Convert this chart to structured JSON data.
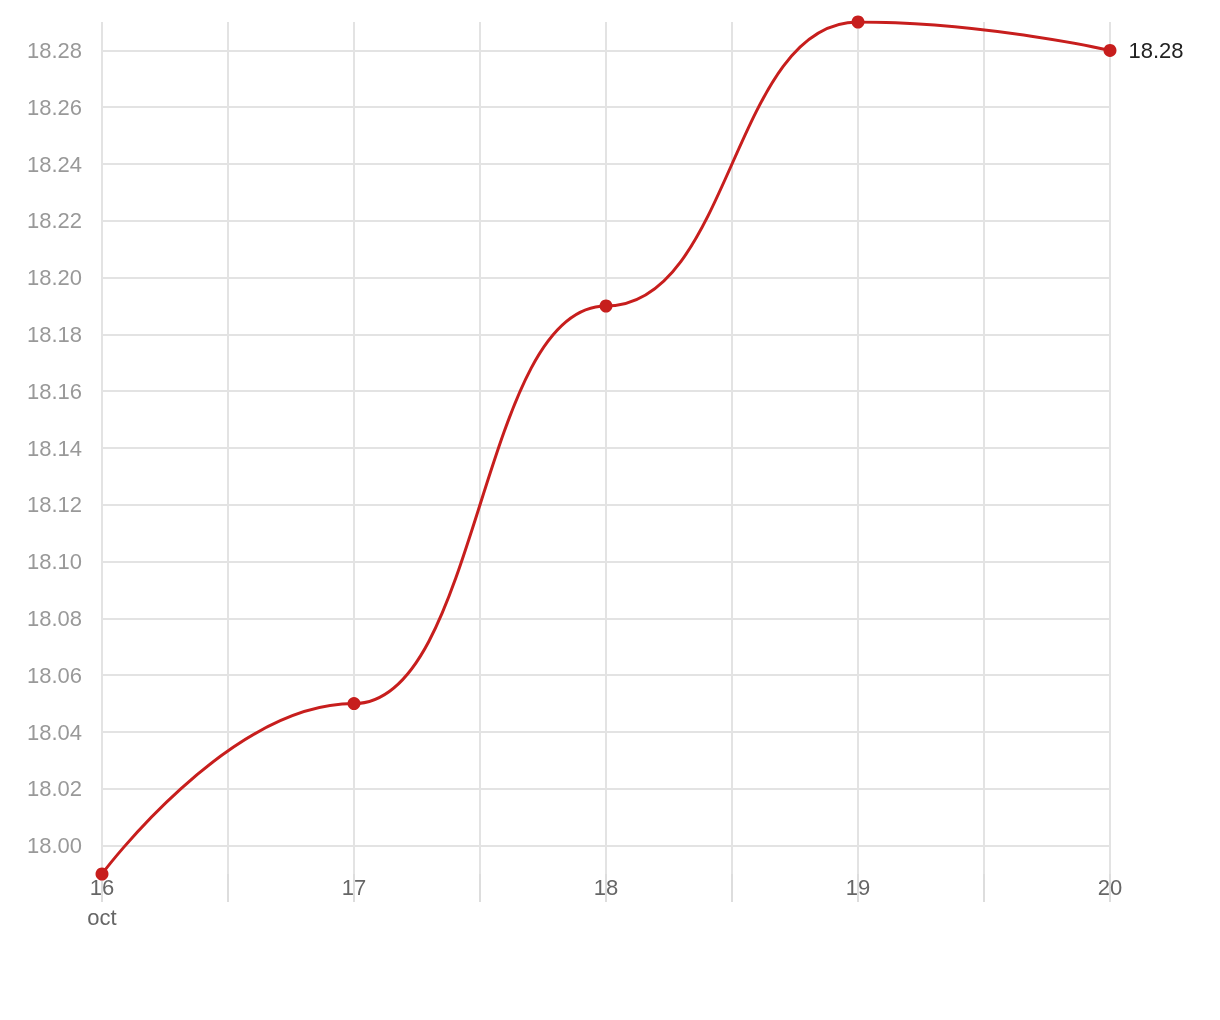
{
  "chart_data": {
    "type": "line",
    "x": [
      "--10-16",
      "--10-17",
      "--10-18",
      "--10-19",
      "--10-20"
    ],
    "series": [
      {
        "color": "#c71e1d",
        "values": [
          17.99,
          18.05,
          18.19,
          18.29,
          18.28
        ],
        "value_labels": [
          null,
          null,
          null,
          null,
          "18.28"
        ]
      }
    ],
    "xlim": [
      "--10-16",
      "--10-20"
    ],
    "xticks": [
      {
        "value": "--10-16",
        "label": "16\noct"
      },
      {
        "value": "--10-16T12:00",
        "label": null
      },
      {
        "value": "--10-17",
        "label": "17"
      },
      {
        "value": "--10-17T12:00",
        "label": null
      },
      {
        "value": "--10-18",
        "label": "18"
      },
      {
        "value": "--10-18T12:00",
        "label": null
      },
      {
        "value": "--10-19",
        "label": "19"
      },
      {
        "value": "--10-19T12:00",
        "label": null
      },
      {
        "value": "--10-20",
        "label": "20"
      }
    ],
    "ylim": [
      17.99,
      18.29
    ],
    "yticks": [
      {
        "value": 18,
        "label": "18.00"
      },
      {
        "value": 18.02,
        "label": "18.02"
      },
      {
        "value": 18.04,
        "label": "18.04"
      },
      {
        "value": 18.06,
        "label": "18.06"
      },
      {
        "value": 18.08,
        "label": "18.08"
      },
      {
        "value": 18.1,
        "label": "18.10"
      },
      {
        "value": 18.12,
        "label": "18.12"
      },
      {
        "value": 18.14,
        "label": "18.14"
      },
      {
        "value": 18.16,
        "label": "18.16"
      },
      {
        "value": 18.18,
        "label": "18.18"
      },
      {
        "value": 18.2,
        "label": "18.20"
      },
      {
        "value": 18.22,
        "label": "18.22"
      },
      {
        "value": 18.24,
        "label": "18.24"
      },
      {
        "value": 18.26,
        "label": "18.26"
      },
      {
        "value": 18.28,
        "label": "18.28"
      }
    ],
    "grid": true,
    "marker": "circle",
    "line_style": "solid"
  }
}
